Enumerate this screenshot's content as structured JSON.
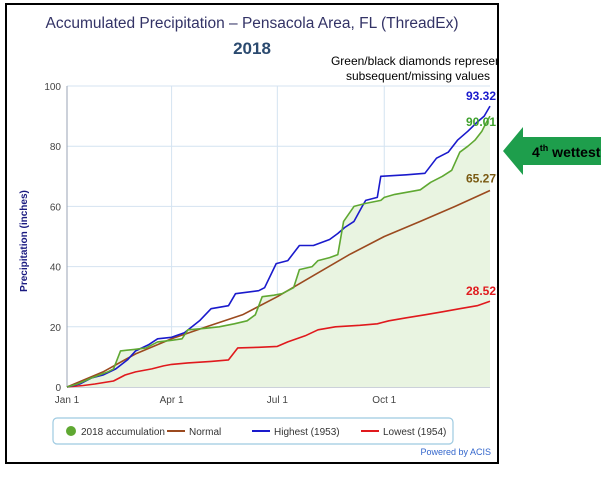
{
  "chart_data": {
    "type": "line",
    "title": "Accumulated Precipitation – Pensacola Area, FL (ThreadEx)",
    "subtitle": "2018",
    "ylabel": "Precipitation (inches)",
    "xlabel": "",
    "ylim": [
      0,
      100
    ],
    "yticks": [
      0,
      20,
      40,
      60,
      80,
      100
    ],
    "xlim": [
      "2018-01-01",
      "2018-12-31"
    ],
    "xticks": [
      {
        "date": "2018-01-01",
        "label": "Jan 1"
      },
      {
        "date": "2018-04-01",
        "label": "Apr 1"
      },
      {
        "date": "2018-07-01",
        "label": "Jul 1"
      },
      {
        "date": "2018-10-01",
        "label": "Oct 1"
      }
    ],
    "grid": true,
    "legend_position": "bottom",
    "series": [
      {
        "name": "2018 accumulation",
        "color": "#5fa832",
        "fill": "#e9f4e1",
        "points": [
          [
            "2018-01-01",
            0
          ],
          [
            "2018-01-10",
            1
          ],
          [
            "2018-01-22",
            3
          ],
          [
            "2018-02-05",
            5
          ],
          [
            "2018-02-10",
            6
          ],
          [
            "2018-02-16",
            12
          ],
          [
            "2018-02-28",
            12.5
          ],
          [
            "2018-03-10",
            13
          ],
          [
            "2018-03-20",
            15
          ],
          [
            "2018-04-01",
            15.5
          ],
          [
            "2018-04-10",
            16
          ],
          [
            "2018-04-15",
            19
          ],
          [
            "2018-04-30",
            19.5
          ],
          [
            "2018-05-12",
            20
          ],
          [
            "2018-05-25",
            21
          ],
          [
            "2018-06-05",
            22
          ],
          [
            "2018-06-12",
            24
          ],
          [
            "2018-06-18",
            30
          ],
          [
            "2018-06-28",
            30.5
          ],
          [
            "2018-07-05",
            31
          ],
          [
            "2018-07-15",
            33
          ],
          [
            "2018-07-20",
            39
          ],
          [
            "2018-07-31",
            40
          ],
          [
            "2018-08-05",
            42
          ],
          [
            "2018-08-15",
            43
          ],
          [
            "2018-08-22",
            44
          ],
          [
            "2018-08-27",
            55
          ],
          [
            "2018-09-05",
            60
          ],
          [
            "2018-09-15",
            61
          ],
          [
            "2018-09-28",
            62
          ],
          [
            "2018-10-01",
            63
          ],
          [
            "2018-10-10",
            64
          ],
          [
            "2018-10-25",
            65
          ],
          [
            "2018-11-01",
            65.5
          ],
          [
            "2018-11-10",
            68
          ],
          [
            "2018-11-20",
            70
          ],
          [
            "2018-11-28",
            72
          ],
          [
            "2018-12-05",
            78
          ],
          [
            "2018-12-12",
            80
          ],
          [
            "2018-12-18",
            82
          ],
          [
            "2018-12-24",
            85
          ],
          [
            "2018-12-28",
            88
          ],
          [
            "2018-12-31",
            90.01
          ]
        ]
      },
      {
        "name": "Normal",
        "color": "#9b4a1f",
        "points": [
          [
            "2018-01-01",
            0
          ],
          [
            "2018-02-01",
            5
          ],
          [
            "2018-03-01",
            11
          ],
          [
            "2018-04-01",
            16
          ],
          [
            "2018-05-01",
            20
          ],
          [
            "2018-06-01",
            24
          ],
          [
            "2018-07-01",
            30
          ],
          [
            "2018-08-01",
            37
          ],
          [
            "2018-09-01",
            44
          ],
          [
            "2018-10-01",
            50
          ],
          [
            "2018-11-01",
            55
          ],
          [
            "2018-12-01",
            60
          ],
          [
            "2018-12-31",
            65.27
          ]
        ]
      },
      {
        "name": "Highest (1953)",
        "color": "#1a1acc",
        "points": [
          [
            "2018-01-01",
            0
          ],
          [
            "2018-01-12",
            1
          ],
          [
            "2018-01-22",
            3
          ],
          [
            "2018-02-01",
            4
          ],
          [
            "2018-02-12",
            6
          ],
          [
            "2018-02-22",
            9
          ],
          [
            "2018-03-01",
            12
          ],
          [
            "2018-03-12",
            14
          ],
          [
            "2018-03-20",
            16
          ],
          [
            "2018-04-01",
            16.5
          ],
          [
            "2018-04-12",
            18
          ],
          [
            "2018-04-25",
            22
          ],
          [
            "2018-05-05",
            26
          ],
          [
            "2018-05-20",
            27
          ],
          [
            "2018-05-26",
            31
          ],
          [
            "2018-06-15",
            32
          ],
          [
            "2018-06-20",
            33
          ],
          [
            "2018-06-30",
            41
          ],
          [
            "2018-07-10",
            42
          ],
          [
            "2018-07-20",
            47
          ],
          [
            "2018-08-01",
            47
          ],
          [
            "2018-08-08",
            48
          ],
          [
            "2018-08-15",
            49
          ],
          [
            "2018-08-22",
            51
          ],
          [
            "2018-08-28",
            53
          ],
          [
            "2018-09-05",
            55
          ],
          [
            "2018-09-12",
            60
          ],
          [
            "2018-09-15",
            62
          ],
          [
            "2018-09-25",
            63
          ],
          [
            "2018-09-28",
            70
          ],
          [
            "2018-10-20",
            70.5
          ],
          [
            "2018-11-05",
            71
          ],
          [
            "2018-11-15",
            76
          ],
          [
            "2018-11-25",
            78
          ],
          [
            "2018-12-03",
            82
          ],
          [
            "2018-12-12",
            85
          ],
          [
            "2018-12-20",
            88
          ],
          [
            "2018-12-26",
            90
          ],
          [
            "2018-12-31",
            93.32
          ]
        ]
      },
      {
        "name": "Lowest (1954)",
        "color": "#e0191d",
        "points": [
          [
            "2018-01-01",
            0
          ],
          [
            "2018-01-15",
            0.5
          ],
          [
            "2018-01-25",
            1
          ],
          [
            "2018-02-10",
            2
          ],
          [
            "2018-02-20",
            4
          ],
          [
            "2018-03-01",
            5
          ],
          [
            "2018-03-15",
            6
          ],
          [
            "2018-03-25",
            7
          ],
          [
            "2018-04-01",
            7.5
          ],
          [
            "2018-04-15",
            8
          ],
          [
            "2018-05-05",
            8.5
          ],
          [
            "2018-05-20",
            9
          ],
          [
            "2018-05-28",
            13
          ],
          [
            "2018-06-15",
            13.2
          ],
          [
            "2018-07-01",
            13.5
          ],
          [
            "2018-07-10",
            15
          ],
          [
            "2018-07-25",
            17
          ],
          [
            "2018-08-05",
            19
          ],
          [
            "2018-08-20",
            20
          ],
          [
            "2018-09-10",
            20.5
          ],
          [
            "2018-09-25",
            21
          ],
          [
            "2018-10-05",
            22
          ],
          [
            "2018-10-20",
            23
          ],
          [
            "2018-11-05",
            24
          ],
          [
            "2018-11-20",
            25
          ],
          [
            "2018-12-05",
            26
          ],
          [
            "2018-12-20",
            27
          ],
          [
            "2018-12-31",
            28.52
          ]
        ]
      }
    ],
    "end_labels": [
      {
        "series": 2,
        "text": "93.32”",
        "color": "#1a1acc"
      },
      {
        "series": 0,
        "text": "90.01”",
        "color": "#3ea02c"
      },
      {
        "series": 1,
        "text": "65.27”",
        "color": "#7a5a12"
      },
      {
        "series": 3,
        "text": "28.52”",
        "color": "#e0191d"
      }
    ],
    "annotations": {
      "note_line1": "Green/black diamonds represent",
      "note_line2": "subsequent/missing values",
      "rank_label": "4",
      "rank_sup": "th",
      "rank_word": " wettest",
      "credit": "Powered by ACIS"
    }
  }
}
